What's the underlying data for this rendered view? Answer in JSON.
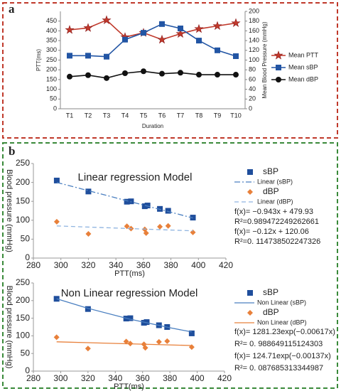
{
  "panel_labels": [
    "a",
    "b"
  ],
  "chart_data": [
    {
      "type": "line",
      "x_label": "Duration",
      "y_label": "PTT(ms)",
      "y2_label": "Mean Blood Pressure (mmHg)",
      "categories": [
        "T1",
        "T2",
        "T3",
        "T4",
        "T5",
        "T6",
        "T7",
        "T8",
        "T9",
        "T10"
      ],
      "ylim": [
        0,
        500
      ],
      "yticks": [
        0,
        50,
        100,
        150,
        200,
        250,
        300,
        350,
        400,
        450
      ],
      "y2lim": [
        0,
        200
      ],
      "y2ticks": [
        0,
        20,
        40,
        60,
        80,
        100,
        120,
        140,
        160,
        180,
        200
      ],
      "series": [
        {
          "name": "Mean PTT",
          "color": "#c0392b",
          "marker": "star",
          "values": [
            405,
            415,
            455,
            368,
            390,
            355,
            385,
            410,
            425,
            440
          ]
        },
        {
          "name": "Mean sBP",
          "color": "#2255a4",
          "marker": "square",
          "axis": "y2",
          "values": [
            109,
            109,
            107,
            142,
            156,
            174,
            165,
            140,
            120,
            108
          ]
        },
        {
          "name": "Mean dBP",
          "color": "#111111",
          "marker": "circle",
          "axis": "y2",
          "values": [
            66,
            69,
            63,
            73,
            77,
            72,
            74,
            70,
            70,
            70
          ]
        }
      ]
    },
    {
      "type": "scatter",
      "title": "Linear regression Model",
      "x_label": "PTT(ms)",
      "y_label": "Blood pressure (mmHg)",
      "xlim": [
        280,
        420
      ],
      "xticks": [
        280,
        300,
        320,
        340,
        360,
        380,
        400,
        420
      ],
      "ylim": [
        0,
        250
      ],
      "yticks": [
        0,
        50,
        100,
        150,
        200,
        250
      ],
      "series": [
        {
          "name": "sBP",
          "color": "#1f4e9c",
          "marker": "square",
          "x": [
            297,
            320,
            348,
            351,
            361,
            363,
            372,
            378,
            396
          ],
          "values": [
            205,
            176,
            149,
            150,
            137,
            139,
            130,
            125,
            107
          ]
        },
        {
          "name": "Linear (sBP)",
          "color": "#4a7fc0",
          "style": "dashdot",
          "x": [
            297,
            396
          ],
          "values": [
            200,
            106
          ]
        },
        {
          "name": "dBP",
          "color": "#e8803a",
          "marker": "diamond",
          "x": [
            297,
            320,
            348,
            351,
            361,
            362,
            372,
            378,
            396
          ],
          "values": [
            96,
            64,
            84,
            78,
            76,
            66,
            83,
            85,
            68
          ]
        },
        {
          "name": "Linear (dBP)",
          "color": "#8fb4e0",
          "style": "dashed",
          "x": [
            297,
            396
          ],
          "values": [
            85,
            72
          ]
        }
      ],
      "annotations": [
        "f(x)= −0.943x + 479.93",
        "R²=0.989472249262661",
        "f(x)= −0.12x + 120.06",
        "R²=0. 114738502247326"
      ]
    },
    {
      "type": "scatter",
      "title": "Non Linear regression Model",
      "x_label": "PTT(ms)",
      "y_label": "Blood pressure (mmHg)",
      "xlim": [
        280,
        420
      ],
      "xticks": [
        280,
        300,
        320,
        340,
        360,
        380,
        400,
        420
      ],
      "ylim": [
        0,
        250
      ],
      "yticks": [
        0,
        50,
        100,
        150,
        200,
        250
      ],
      "series": [
        {
          "name": "sBP",
          "color": "#1f4e9c",
          "marker": "square",
          "x": [
            297,
            320,
            348,
            351,
            361,
            363,
            372,
            378,
            396
          ],
          "values": [
            205,
            176,
            149,
            150,
            137,
            139,
            130,
            125,
            107
          ]
        },
        {
          "name": "Non Linear (sBP)",
          "color": "#4a7fc0",
          "style": "solid",
          "x": [
            297,
            320,
            350,
            380,
            396
          ],
          "values": [
            205,
            178,
            148,
            123,
            111
          ]
        },
        {
          "name": "dBP",
          "color": "#e8803a",
          "marker": "diamond",
          "x": [
            297,
            320,
            348,
            351,
            361,
            362,
            372,
            378,
            396
          ],
          "values": [
            96,
            64,
            84,
            78,
            76,
            66,
            83,
            85,
            68
          ]
        },
        {
          "name": "Non Linear (dBP)",
          "color": "#e8803a",
          "style": "solid",
          "x": [
            297,
            396
          ],
          "values": [
            83,
            72.5
          ]
        }
      ],
      "annotations": [
        "f(x)= 1281.23exp(−0.00617x)",
        "R²= 0. 988649115124303",
        "f(x)= 124.71exp(−0.00137x)",
        "R²= 0. 087685313344987"
      ]
    }
  ]
}
